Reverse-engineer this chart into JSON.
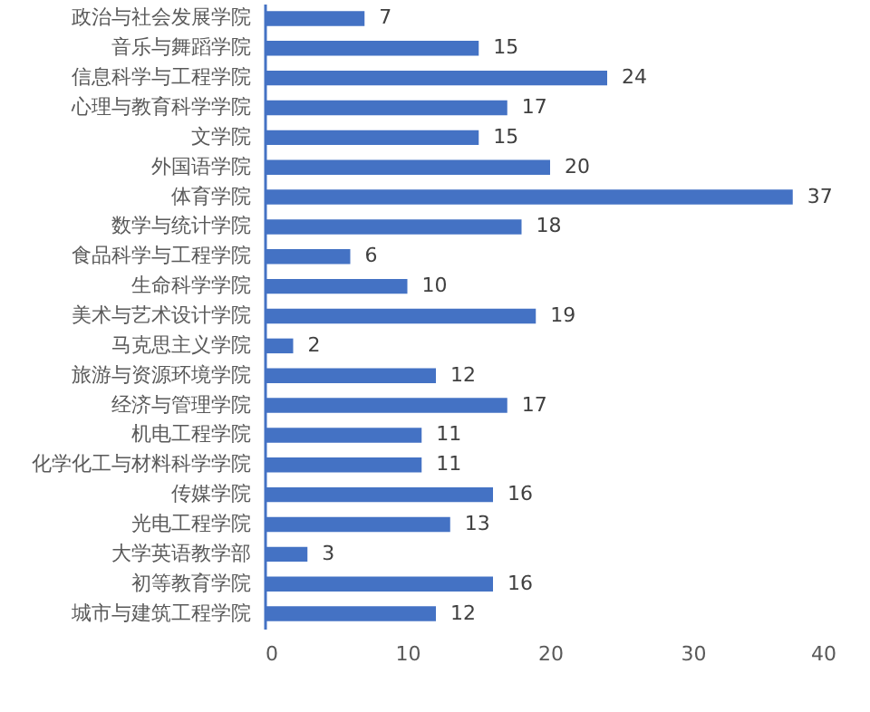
{
  "chart_data": {
    "type": "bar",
    "orientation": "horizontal",
    "categories": [
      "政治与社会发展学院",
      "音乐与舞蹈学院",
      "信息科学与工程学院",
      "心理与教育科学学院",
      "文学院",
      "外国语学院",
      "体育学院",
      "数学与统计学院",
      "食品科学与工程学院",
      "生命科学学院",
      "美术与艺术设计学院",
      "马克思主义学院",
      "旅游与资源环境学院",
      "经济与管理学院",
      "机电工程学院",
      "化学化工与材料科学学院",
      "传媒学院",
      "光电工程学院",
      "大学英语教学部",
      "初等教育学院",
      "城市与建筑工程学院"
    ],
    "values": [
      7,
      15,
      24,
      17,
      15,
      20,
      37,
      18,
      6,
      10,
      19,
      2,
      12,
      17,
      11,
      11,
      16,
      13,
      3,
      16,
      12
    ],
    "color": "#4472c4",
    "xlim": [
      0,
      40
    ],
    "xticks": [
      0,
      10,
      20,
      30,
      40
    ],
    "data_labels": true,
    "grid": false
  }
}
